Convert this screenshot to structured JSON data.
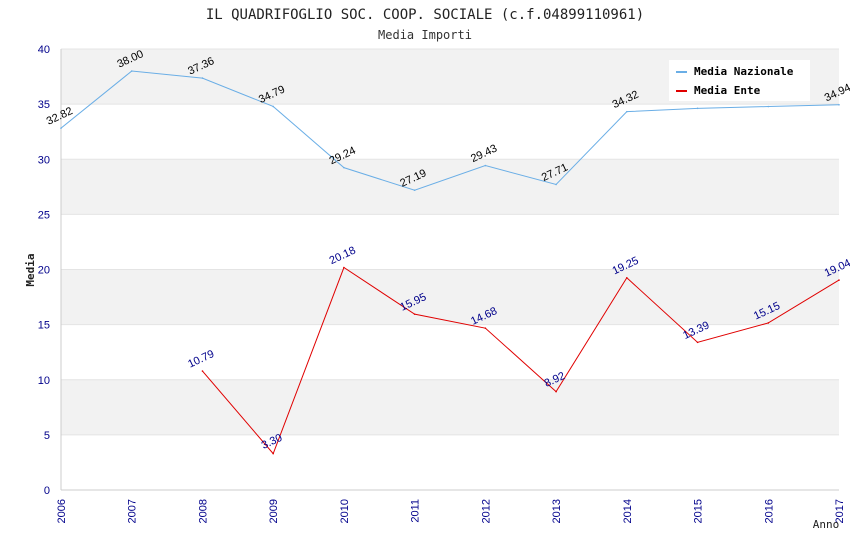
{
  "chart_data": {
    "type": "line",
    "title": "IL QUADRIFOGLIO SOC. COOP. SOCIALE (c.f.04899110961)",
    "subtitle": "Media Importi",
    "xlabel": "Anno",
    "ylabel": "Media",
    "ylim": [
      0,
      40
    ],
    "yticks": [
      0,
      5,
      10,
      15,
      20,
      25,
      30,
      35,
      40
    ],
    "grid": "horizontal alternating bands",
    "legend_position": "top-right",
    "x": [
      "2006",
      "2007",
      "2008",
      "2009",
      "2010",
      "2011",
      "2012",
      "2013",
      "2014",
      "2015",
      "2016",
      "2017"
    ],
    "series": [
      {
        "name": "Media Nazionale",
        "color": "#6aaee6",
        "label_color": "#000000",
        "values": [
          32.82,
          38.0,
          37.36,
          34.79,
          29.24,
          27.19,
          29.43,
          27.71,
          34.32,
          34.62,
          34.78,
          34.94
        ],
        "labels": [
          "32.82",
          "38.00",
          "37.36",
          "34.79",
          "29.24",
          "27.19",
          "29.43",
          "27.71",
          "34.32",
          "",
          "",
          "34.94"
        ]
      },
      {
        "name": "Media Ente",
        "color": "#e00000",
        "label_color": "#00008b",
        "values": [
          null,
          null,
          10.79,
          3.3,
          20.18,
          15.95,
          14.68,
          8.92,
          19.25,
          13.39,
          15.15,
          19.04
        ],
        "labels": [
          "",
          "",
          "10.79",
          "3.30",
          "20.18",
          "15.95",
          "14.68",
          "8.92",
          "19.25",
          "13.39",
          "15.15",
          "19.04"
        ]
      }
    ]
  },
  "colors": {
    "band": "#f2f2f2",
    "axis_tick_text": "#00008b",
    "title_text": "#222222",
    "axis_line": "#cccccc"
  }
}
